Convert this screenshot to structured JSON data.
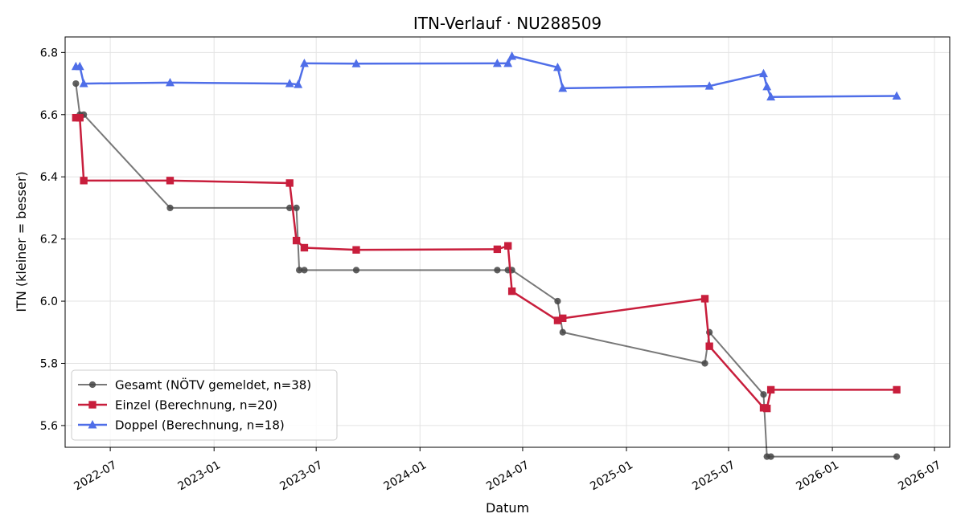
{
  "chart_data": {
    "type": "line",
    "title": "ITN-Verlauf · NU288509",
    "xlabel": "Datum",
    "ylabel": "ITN  (kleiner = besser)",
    "x_type": "date",
    "xlim": [
      "2022-04-12",
      "2026-07-28"
    ],
    "ylim": [
      5.53,
      6.85
    ],
    "x_ticks": [
      "2022-07-01",
      "2023-01-01",
      "2023-07-01",
      "2024-01-01",
      "2024-07-01",
      "2025-01-01",
      "2025-07-01",
      "2026-01-01",
      "2026-07-01"
    ],
    "x_tick_labels": [
      "2022-07",
      "2023-01",
      "2023-07",
      "2024-01",
      "2024-07",
      "2025-01",
      "2025-07",
      "2026-01",
      "2026-07"
    ],
    "y_ticks": [
      5.6,
      5.8,
      6.0,
      6.2,
      6.4,
      6.6,
      6.8
    ],
    "y_tick_labels": [
      "5.6",
      "5.8",
      "6.0",
      "6.2",
      "6.4",
      "6.6",
      "6.8"
    ],
    "grid": true,
    "legend_position": "lower-left",
    "series": [
      {
        "name": "Gesamt (NÖTV gemeldet, n=38)",
        "color": "#444444",
        "marker": "circle",
        "points": [
          [
            "2022-05-01",
            6.7
          ],
          [
            "2022-05-08",
            6.6
          ],
          [
            "2022-05-15",
            6.6
          ],
          [
            "2022-10-15",
            6.3
          ],
          [
            "2023-05-15",
            6.3
          ],
          [
            "2023-05-27",
            6.3
          ],
          [
            "2023-06-01",
            6.1
          ],
          [
            "2023-06-10",
            6.1
          ],
          [
            "2023-09-10",
            6.1
          ],
          [
            "2024-05-17",
            6.1
          ],
          [
            "2024-06-05",
            6.1
          ],
          [
            "2024-06-12",
            6.1
          ],
          [
            "2024-09-01",
            6.0
          ],
          [
            "2024-09-10",
            5.9
          ],
          [
            "2025-05-20",
            5.8
          ],
          [
            "2025-05-28",
            5.9
          ],
          [
            "2025-09-01",
            5.7
          ],
          [
            "2025-09-07",
            5.5
          ],
          [
            "2025-09-14",
            5.5
          ],
          [
            "2026-04-25",
            5.5
          ]
        ]
      },
      {
        "name": "Einzel (Berechnung, n=20)",
        "color": "#c81e3c",
        "marker": "square",
        "points": [
          [
            "2022-05-01",
            6.59
          ],
          [
            "2022-05-08",
            6.59
          ],
          [
            "2022-05-15",
            6.388
          ],
          [
            "2022-10-15",
            6.388
          ],
          [
            "2023-05-15",
            6.38
          ],
          [
            "2023-05-27",
            6.195
          ],
          [
            "2023-06-10",
            6.172
          ],
          [
            "2023-09-10",
            6.165
          ],
          [
            "2024-05-17",
            6.167
          ],
          [
            "2024-06-05",
            6.178
          ],
          [
            "2024-06-12",
            6.032
          ],
          [
            "2024-09-01",
            5.938
          ],
          [
            "2024-09-10",
            5.945
          ],
          [
            "2025-05-20",
            6.008
          ],
          [
            "2025-05-28",
            5.855
          ],
          [
            "2025-09-01",
            5.657
          ],
          [
            "2025-09-07",
            5.655
          ],
          [
            "2025-09-14",
            5.715
          ],
          [
            "2026-04-25",
            5.715
          ]
        ]
      },
      {
        "name": "Doppel (Berechnung, n=18)",
        "color": "#4f6ee8",
        "marker": "triangle",
        "points": [
          [
            "2022-05-01",
            6.755
          ],
          [
            "2022-05-08",
            6.755
          ],
          [
            "2022-05-15",
            6.7
          ],
          [
            "2022-10-15",
            6.703
          ],
          [
            "2023-05-15",
            6.7
          ],
          [
            "2023-05-30",
            6.697
          ],
          [
            "2023-06-10",
            6.765
          ],
          [
            "2023-09-10",
            6.764
          ],
          [
            "2024-05-17",
            6.765
          ],
          [
            "2024-06-05",
            6.765
          ],
          [
            "2024-06-12",
            6.788
          ],
          [
            "2024-09-01",
            6.752
          ],
          [
            "2024-09-10",
            6.685
          ],
          [
            "2025-05-28",
            6.692
          ],
          [
            "2025-09-01",
            6.732
          ],
          [
            "2025-09-07",
            6.69
          ],
          [
            "2025-09-14",
            6.657
          ],
          [
            "2026-04-25",
            6.66
          ]
        ]
      }
    ]
  }
}
